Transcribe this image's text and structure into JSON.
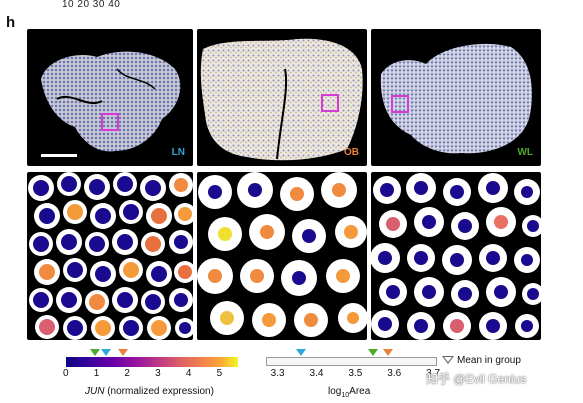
{
  "figure": {
    "top_numbers": "10 20 30 40",
    "panel_letter": "h",
    "overview_panels": [
      {
        "label": "LN",
        "label_color": "#2fa7d9"
      },
      {
        "label": "OB",
        "label_color": "#e8813b"
      },
      {
        "label": "WL",
        "label_color": "#4caa2e"
      }
    ],
    "colorbar": {
      "ticks": [
        "0",
        "1",
        "2",
        "3",
        "4",
        "5"
      ],
      "tick_values": [
        0,
        1,
        2,
        3,
        4,
        5
      ],
      "range": [
        0,
        5.6
      ],
      "label_gene": "JUN",
      "label_rest": " (normalized expression)",
      "markers": [
        {
          "group": "WL",
          "value": 0.95,
          "color": "#4caa2e"
        },
        {
          "group": "LN",
          "value": 1.3,
          "color": "#2fa7d9"
        },
        {
          "group": "OB",
          "value": 1.85,
          "color": "#e8813b"
        }
      ]
    },
    "area_axis": {
      "ticks": [
        "3.3",
        "3.4",
        "3.5",
        "3.6",
        "3.7"
      ],
      "tick_values": [
        3.3,
        3.4,
        3.5,
        3.6,
        3.7
      ],
      "range": [
        3.27,
        3.71
      ],
      "label_prefix": "log",
      "label_sub": "10",
      "label_suffix": "Area",
      "markers": [
        {
          "group": "LN",
          "value": 3.36,
          "color": "#2fa7d9"
        },
        {
          "group": "WL",
          "value": 3.545,
          "color": "#4caa2e"
        },
        {
          "group": "OB",
          "value": 3.585,
          "color": "#e8813b"
        }
      ]
    },
    "legend_text": "Mean in group",
    "watermark": "知乎 @Evil Genius"
  }
}
